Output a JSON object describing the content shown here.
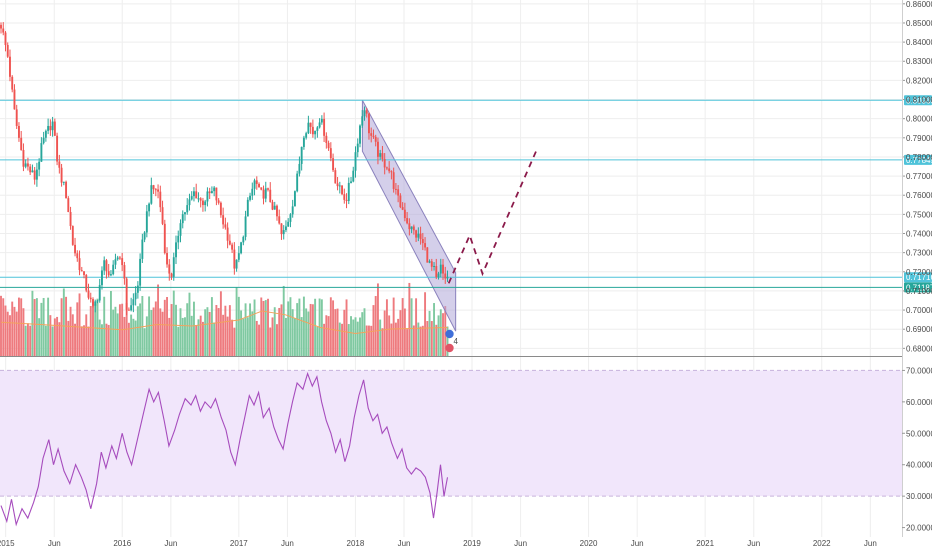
{
  "chart_data": [
    {
      "type": "candlestick",
      "panel": "price",
      "y_axis_ticks": [
        "0.86000",
        "0.85000",
        "0.84000",
        "0.83000",
        "0.82000",
        "0.81000",
        "0.80000",
        "0.79000",
        "0.78000",
        "0.77000",
        "0.76000",
        "0.75000",
        "0.74000",
        "0.73000",
        "0.72000",
        "0.71000",
        "0.70000",
        "0.69000",
        "0.68000"
      ],
      "ylim": [
        0.676,
        0.862
      ],
      "x_axis_labels": [
        {
          "label": "2015",
          "t": 2015.0
        },
        {
          "label": "Jun",
          "t": 2015.417
        },
        {
          "label": "2016",
          "t": 2016.0
        },
        {
          "label": "Jun",
          "t": 2016.417
        },
        {
          "label": "2017",
          "t": 2017.0
        },
        {
          "label": "Jun",
          "t": 2017.417
        },
        {
          "label": "2018",
          "t": 2018.0
        },
        {
          "label": "Jun",
          "t": 2018.417
        },
        {
          "label": "2019",
          "t": 2019.0
        },
        {
          "label": "Jun",
          "t": 2019.417
        },
        {
          "label": "2020",
          "t": 2020.0
        },
        {
          "label": "Jun",
          "t": 2020.417
        },
        {
          "label": "2021",
          "t": 2021.0
        },
        {
          "label": "Jun",
          "t": 2021.417
        },
        {
          "label": "2022",
          "t": 2022.0
        },
        {
          "label": "Jun",
          "t": 2022.417
        }
      ],
      "horizontal_levels": [
        {
          "value": 0.8096,
          "label": "0.80960",
          "color": "#4fc3d9"
        },
        {
          "value": 0.77845,
          "label": "0.77845",
          "color": "#4fc3d9"
        },
        {
          "value": 0.71716,
          "label": "0.71716",
          "color": "#4fc3d9"
        },
        {
          "value": 0.71187,
          "label": "0.71187",
          "color": "#26a69a"
        }
      ],
      "close_path": [
        {
          "t": 2014.96,
          "v": 0.849
        },
        {
          "t": 2015.02,
          "v": 0.832
        },
        {
          "t": 2015.08,
          "v": 0.801
        },
        {
          "t": 2015.15,
          "v": 0.778
        },
        {
          "t": 2015.25,
          "v": 0.769
        },
        {
          "t": 2015.32,
          "v": 0.788
        },
        {
          "t": 2015.4,
          "v": 0.799
        },
        {
          "t": 2015.45,
          "v": 0.775
        },
        {
          "t": 2015.52,
          "v": 0.76
        },
        {
          "t": 2015.58,
          "v": 0.733
        },
        {
          "t": 2015.64,
          "v": 0.722
        },
        {
          "t": 2015.7,
          "v": 0.71
        },
        {
          "t": 2015.75,
          "v": 0.7
        },
        {
          "t": 2015.79,
          "v": 0.708
        },
        {
          "t": 2015.85,
          "v": 0.726
        },
        {
          "t": 2015.9,
          "v": 0.715
        },
        {
          "t": 2015.95,
          "v": 0.729
        },
        {
          "t": 2016.0,
          "v": 0.726
        },
        {
          "t": 2016.04,
          "v": 0.7
        },
        {
          "t": 2016.08,
          "v": 0.702
        },
        {
          "t": 2016.13,
          "v": 0.712
        },
        {
          "t": 2016.18,
          "v": 0.738
        },
        {
          "t": 2016.24,
          "v": 0.762
        },
        {
          "t": 2016.3,
          "v": 0.764
        },
        {
          "t": 2016.34,
          "v": 0.749
        },
        {
          "t": 2016.38,
          "v": 0.723
        },
        {
          "t": 2016.42,
          "v": 0.718
        },
        {
          "t": 2016.46,
          "v": 0.732
        },
        {
          "t": 2016.5,
          "v": 0.748
        },
        {
          "t": 2016.56,
          "v": 0.754
        },
        {
          "t": 2016.62,
          "v": 0.762
        },
        {
          "t": 2016.68,
          "v": 0.756
        },
        {
          "t": 2016.74,
          "v": 0.76
        },
        {
          "t": 2016.79,
          "v": 0.762
        },
        {
          "t": 2016.85,
          "v": 0.749
        },
        {
          "t": 2016.92,
          "v": 0.736
        },
        {
          "t": 2016.97,
          "v": 0.721
        },
        {
          "t": 2017.02,
          "v": 0.734
        },
        {
          "t": 2017.08,
          "v": 0.756
        },
        {
          "t": 2017.14,
          "v": 0.768
        },
        {
          "t": 2017.18,
          "v": 0.76
        },
        {
          "t": 2017.24,
          "v": 0.762
        },
        {
          "t": 2017.28,
          "v": 0.756
        },
        {
          "t": 2017.33,
          "v": 0.748
        },
        {
          "t": 2017.37,
          "v": 0.738
        },
        {
          "t": 2017.41,
          "v": 0.744
        },
        {
          "t": 2017.46,
          "v": 0.756
        },
        {
          "t": 2017.51,
          "v": 0.772
        },
        {
          "t": 2017.55,
          "v": 0.792
        },
        {
          "t": 2017.6,
          "v": 0.798
        },
        {
          "t": 2017.64,
          "v": 0.792
        },
        {
          "t": 2017.69,
          "v": 0.801
        },
        {
          "t": 2017.73,
          "v": 0.794
        },
        {
          "t": 2017.78,
          "v": 0.782
        },
        {
          "t": 2017.83,
          "v": 0.768
        },
        {
          "t": 2017.87,
          "v": 0.762
        },
        {
          "t": 2017.92,
          "v": 0.758
        },
        {
          "t": 2017.97,
          "v": 0.77
        },
        {
          "t": 2018.01,
          "v": 0.786
        },
        {
          "t": 2018.05,
          "v": 0.8
        },
        {
          "t": 2018.08,
          "v": 0.807
        },
        {
          "t": 2018.12,
          "v": 0.793
        },
        {
          "t": 2018.17,
          "v": 0.786
        },
        {
          "t": 2018.22,
          "v": 0.778
        },
        {
          "t": 2018.27,
          "v": 0.776
        },
        {
          "t": 2018.31,
          "v": 0.77
        },
        {
          "t": 2018.36,
          "v": 0.758
        },
        {
          "t": 2018.41,
          "v": 0.752
        },
        {
          "t": 2018.46,
          "v": 0.744
        },
        {
          "t": 2018.51,
          "v": 0.74
        },
        {
          "t": 2018.56,
          "v": 0.737
        },
        {
          "t": 2018.6,
          "v": 0.731
        },
        {
          "t": 2018.64,
          "v": 0.723
        },
        {
          "t": 2018.68,
          "v": 0.72
        },
        {
          "t": 2018.7,
          "v": 0.713
        },
        {
          "t": 2018.73,
          "v": 0.723
        },
        {
          "t": 2018.76,
          "v": 0.715
        },
        {
          "t": 2018.79,
          "v": 0.718
        }
      ],
      "channel": {
        "upper": [
          {
            "t": 2018.06,
            "v": 0.8096
          },
          {
            "t": 2018.86,
            "v": 0.7195
          }
        ],
        "lower": [
          {
            "t": 2018.06,
            "v": 0.783
          },
          {
            "t": 2018.86,
            "v": 0.689
          }
        ]
      },
      "projection": [
        {
          "t": 2018.8,
          "v": 0.714
        },
        {
          "t": 2018.98,
          "v": 0.739
        },
        {
          "t": 2019.09,
          "v": 0.719
        },
        {
          "t": 2019.55,
          "v": 0.783
        }
      ],
      "volume": {
        "moving_average": [
          {
            "t": 2014.96,
            "v": 0.45
          },
          {
            "t": 2015.3,
            "v": 0.42
          },
          {
            "t": 2015.7,
            "v": 0.38
          },
          {
            "t": 2016.0,
            "v": 0.35
          },
          {
            "t": 2016.3,
            "v": 0.42
          },
          {
            "t": 2016.6,
            "v": 0.4
          },
          {
            "t": 2017.0,
            "v": 0.48
          },
          {
            "t": 2017.2,
            "v": 0.6
          },
          {
            "t": 2017.4,
            "v": 0.55
          },
          {
            "t": 2017.7,
            "v": 0.38
          },
          {
            "t": 2018.0,
            "v": 0.3
          },
          {
            "t": 2018.3,
            "v": 0.36
          },
          {
            "t": 2018.79,
            "v": 0.38
          }
        ]
      }
    },
    {
      "type": "line",
      "panel": "oscillator",
      "y_axis_ticks": [
        "70.0000",
        "60.0000",
        "50.0000",
        "40.0000",
        "30.0000",
        "20.0000"
      ],
      "ylim": [
        17,
        73
      ],
      "band": [
        30,
        70
      ],
      "values": [
        {
          "t": 2014.96,
          "v": 27
        },
        {
          "t": 2015.01,
          "v": 22
        },
        {
          "t": 2015.05,
          "v": 29
        },
        {
          "t": 2015.09,
          "v": 21
        },
        {
          "t": 2015.14,
          "v": 26
        },
        {
          "t": 2015.19,
          "v": 23
        },
        {
          "t": 2015.24,
          "v": 28
        },
        {
          "t": 2015.28,
          "v": 33
        },
        {
          "t": 2015.32,
          "v": 42
        },
        {
          "t": 2015.37,
          "v": 48
        },
        {
          "t": 2015.41,
          "v": 40
        },
        {
          "t": 2015.45,
          "v": 45
        },
        {
          "t": 2015.5,
          "v": 38
        },
        {
          "t": 2015.55,
          "v": 34
        },
        {
          "t": 2015.6,
          "v": 40
        },
        {
          "t": 2015.65,
          "v": 36
        },
        {
          "t": 2015.69,
          "v": 32
        },
        {
          "t": 2015.73,
          "v": 26
        },
        {
          "t": 2015.78,
          "v": 34
        },
        {
          "t": 2015.82,
          "v": 44
        },
        {
          "t": 2015.86,
          "v": 39
        },
        {
          "t": 2015.91,
          "v": 46
        },
        {
          "t": 2015.95,
          "v": 42
        },
        {
          "t": 2016.0,
          "v": 50
        },
        {
          "t": 2016.04,
          "v": 44
        },
        {
          "t": 2016.08,
          "v": 40
        },
        {
          "t": 2016.13,
          "v": 48
        },
        {
          "t": 2016.18,
          "v": 56
        },
        {
          "t": 2016.23,
          "v": 64
        },
        {
          "t": 2016.27,
          "v": 60
        },
        {
          "t": 2016.31,
          "v": 63
        },
        {
          "t": 2016.36,
          "v": 54
        },
        {
          "t": 2016.4,
          "v": 46
        },
        {
          "t": 2016.45,
          "v": 51
        },
        {
          "t": 2016.49,
          "v": 56
        },
        {
          "t": 2016.54,
          "v": 61
        },
        {
          "t": 2016.59,
          "v": 59
        },
        {
          "t": 2016.63,
          "v": 62
        },
        {
          "t": 2016.67,
          "v": 57
        },
        {
          "t": 2016.71,
          "v": 60
        },
        {
          "t": 2016.76,
          "v": 58
        },
        {
          "t": 2016.8,
          "v": 61
        },
        {
          "t": 2016.85,
          "v": 55
        },
        {
          "t": 2016.89,
          "v": 51
        },
        {
          "t": 2016.93,
          "v": 44
        },
        {
          "t": 2016.97,
          "v": 40
        },
        {
          "t": 2017.01,
          "v": 48
        },
        {
          "t": 2017.05,
          "v": 55
        },
        {
          "t": 2017.09,
          "v": 62
        },
        {
          "t": 2017.13,
          "v": 59
        },
        {
          "t": 2017.17,
          "v": 63
        },
        {
          "t": 2017.21,
          "v": 55
        },
        {
          "t": 2017.26,
          "v": 58
        },
        {
          "t": 2017.3,
          "v": 52
        },
        {
          "t": 2017.34,
          "v": 48
        },
        {
          "t": 2017.38,
          "v": 45
        },
        {
          "t": 2017.42,
          "v": 53
        },
        {
          "t": 2017.46,
          "v": 60
        },
        {
          "t": 2017.5,
          "v": 66
        },
        {
          "t": 2017.55,
          "v": 64
        },
        {
          "t": 2017.59,
          "v": 69
        },
        {
          "t": 2017.63,
          "v": 65
        },
        {
          "t": 2017.67,
          "v": 68
        },
        {
          "t": 2017.71,
          "v": 60
        },
        {
          "t": 2017.75,
          "v": 54
        },
        {
          "t": 2017.79,
          "v": 50
        },
        {
          "t": 2017.83,
          "v": 44
        },
        {
          "t": 2017.87,
          "v": 48
        },
        {
          "t": 2017.91,
          "v": 41
        },
        {
          "t": 2017.95,
          "v": 46
        },
        {
          "t": 2017.99,
          "v": 55
        },
        {
          "t": 2018.03,
          "v": 62
        },
        {
          "t": 2018.07,
          "v": 67
        },
        {
          "t": 2018.11,
          "v": 58
        },
        {
          "t": 2018.15,
          "v": 54
        },
        {
          "t": 2018.19,
          "v": 56
        },
        {
          "t": 2018.23,
          "v": 50
        },
        {
          "t": 2018.27,
          "v": 52
        },
        {
          "t": 2018.31,
          "v": 47
        },
        {
          "t": 2018.36,
          "v": 42
        },
        {
          "t": 2018.4,
          "v": 45
        },
        {
          "t": 2018.44,
          "v": 39
        },
        {
          "t": 2018.48,
          "v": 37
        },
        {
          "t": 2018.52,
          "v": 39
        },
        {
          "t": 2018.56,
          "v": 38
        },
        {
          "t": 2018.6,
          "v": 36
        },
        {
          "t": 2018.64,
          "v": 31
        },
        {
          "t": 2018.67,
          "v": 23
        },
        {
          "t": 2018.7,
          "v": 31
        },
        {
          "t": 2018.73,
          "v": 40
        },
        {
          "t": 2018.76,
          "v": 30
        },
        {
          "t": 2018.79,
          "v": 36
        }
      ]
    }
  ],
  "colors": {
    "up": "#26a69a",
    "down": "#ef5350",
    "volume_up": "#7fc9a1",
    "volume_down": "#ee7a7e",
    "ma": "#f3a25d",
    "channel_fill": "#b0a8d8",
    "channel_stroke": "#8b82bd",
    "projection": "#8b1a4a",
    "osc_line": "#a64cbd",
    "osc_band": "#f1e6fb",
    "grid": "#eeeeee",
    "level": "#4fc3d9",
    "level_alt": "#26a69a"
  },
  "markers": [
    {
      "icon": "earnings-flag-icon",
      "text": "4"
    }
  ]
}
